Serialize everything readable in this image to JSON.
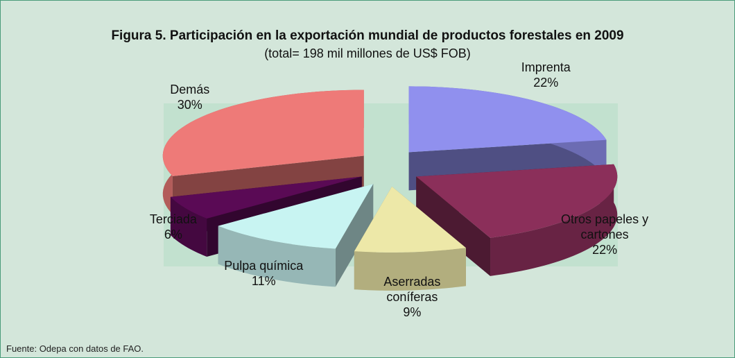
{
  "chart_data": {
    "type": "pie",
    "title": "Figura 5. Participación en la exportación mundial de productos forestales en 2009",
    "subtitle": "(total= 198 mil millones de US$ FOB)",
    "categories": [
      "Imprenta",
      "Otros papeles y cartones",
      "Aserradas coníferas",
      "Pulpa química",
      "Terciada",
      "Demás"
    ],
    "values": [
      22,
      22,
      9,
      11,
      6,
      30
    ],
    "value_labels": [
      "22%",
      "22%",
      "9%",
      "11%",
      "6%",
      "30%"
    ],
    "colors": [
      "#9090ee",
      "#8b2f5a",
      "#ede8a8",
      "#c8f4f2",
      "#5a0a55",
      "#ee7a78"
    ],
    "source": "Fuente: Odepa con datos de FAO."
  }
}
